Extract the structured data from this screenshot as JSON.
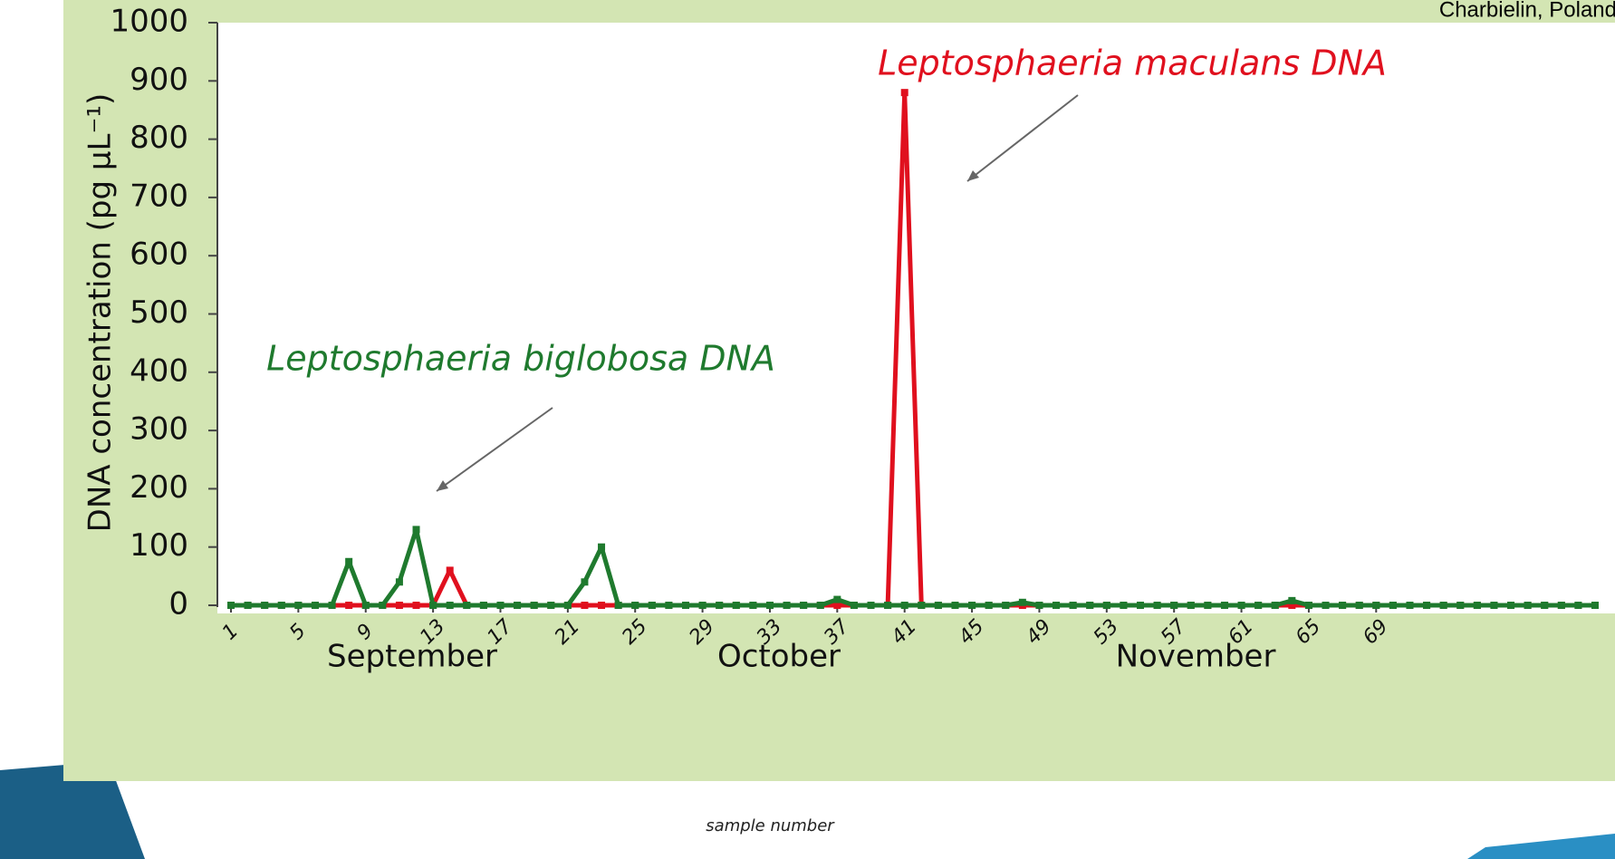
{
  "chart_data": {
    "type": "line",
    "title": "Charbielin, Poland",
    "y_label": "DNA concentration (pg µL⁻¹)",
    "x_label": "sample number",
    "annotations": [
      "Leptosphaeria maculans DNA",
      "Leptosphaeria biglobosa DNA"
    ],
    "months": [
      "September",
      "October",
      "November"
    ],
    "x": [
      1,
      2,
      3,
      4,
      5,
      6,
      7,
      8,
      9,
      10,
      11,
      12,
      13,
      14,
      15,
      16,
      17,
      18,
      19,
      20,
      21,
      22,
      23,
      24,
      25,
      26,
      27,
      28,
      29,
      30,
      31,
      32,
      33,
      34,
      35,
      36,
      37,
      38,
      39,
      40,
      41,
      42,
      43,
      44,
      45,
      46,
      47,
      48,
      49,
      50,
      51,
      52,
      53,
      54,
      55,
      56,
      57,
      58,
      59,
      60,
      61,
      62,
      63,
      64,
      65,
      66,
      67,
      68,
      69,
      70,
      71,
      72,
      73,
      74,
      75,
      76,
      77,
      78,
      79,
      80,
      81,
      82
    ],
    "series": [
      {
        "name": "Leptosphaeria maculans",
        "color": "#e0101e",
        "values": [
          0,
          0,
          0,
          0,
          0,
          0,
          0,
          0,
          0,
          0,
          0,
          0,
          0,
          60,
          0,
          0,
          0,
          0,
          0,
          0,
          0,
          0,
          0,
          0,
          0,
          0,
          0,
          0,
          0,
          0,
          0,
          0,
          0,
          0,
          0,
          0,
          0,
          0,
          0,
          0,
          880,
          0,
          0,
          0,
          0,
          0,
          0,
          0,
          0,
          0,
          0,
          0,
          0,
          0,
          0,
          0,
          0,
          0,
          0,
          0,
          0,
          0,
          0,
          0,
          0,
          0,
          0,
          0,
          0,
          0,
          0,
          0,
          0,
          0,
          0,
          0,
          0,
          0,
          0,
          0,
          0,
          0
        ]
      },
      {
        "name": "Leptosphaeria biglobosa",
        "color": "#1f7a2e",
        "values": [
          0,
          0,
          0,
          0,
          0,
          0,
          0,
          75,
          0,
          0,
          40,
          130,
          0,
          0,
          0,
          0,
          0,
          0,
          0,
          0,
          0,
          40,
          100,
          0,
          0,
          0,
          0,
          0,
          0,
          0,
          0,
          0,
          0,
          0,
          0,
          0,
          10,
          0,
          0,
          0,
          0,
          0,
          0,
          0,
          0,
          0,
          0,
          5,
          0,
          0,
          0,
          0,
          0,
          0,
          0,
          0,
          0,
          0,
          0,
          0,
          0,
          0,
          0,
          8,
          0,
          0,
          0,
          0,
          0,
          0,
          0,
          0,
          0,
          0,
          0,
          0,
          0,
          0,
          0,
          0,
          0,
          0
        ]
      }
    ],
    "xlim": [
      1,
      82
    ],
    "xticks": [
      1,
      5,
      9,
      13,
      17,
      21,
      25,
      29,
      33,
      37,
      41,
      45,
      49,
      53,
      57,
      61,
      65,
      69
    ],
    "ylim": [
      0,
      1000
    ],
    "yticks": [
      0,
      100,
      200,
      300,
      400,
      500,
      600,
      700,
      800,
      900,
      1000
    ]
  }
}
